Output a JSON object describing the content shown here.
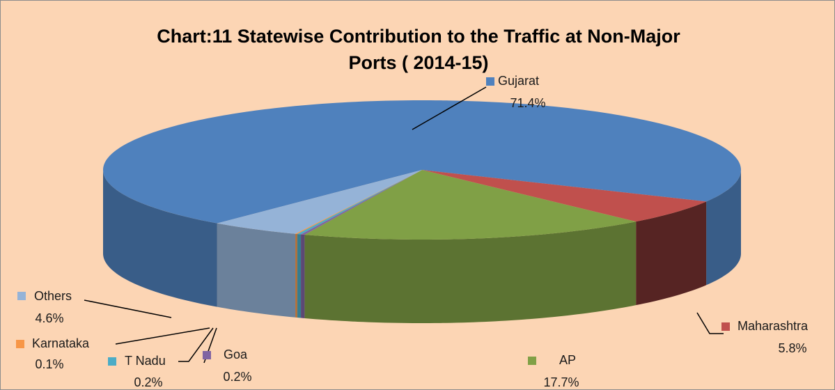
{
  "chart_data": {
    "type": "pie3d",
    "title": "Chart:11 Statewise Contribution to the Traffic at Non-Major Ports ( 2014-15)",
    "categories": [
      "Gujarat",
      "Maharashtra",
      "AP",
      "Goa",
      "T Nadu",
      "Karnataka",
      "Others"
    ],
    "values": [
      71.4,
      5.8,
      17.7,
      0.2,
      0.2,
      0.1,
      4.6
    ],
    "value_labels": [
      "71.4%",
      "5.8%",
      "17.7%",
      "0.2%",
      "0.2%",
      "0.1%",
      "4.6%"
    ],
    "colors": [
      "#4f81bd",
      "#c0504d",
      "#80a046",
      "#8064a2",
      "#4bacc6",
      "#f79646",
      "#95b3d7"
    ]
  }
}
